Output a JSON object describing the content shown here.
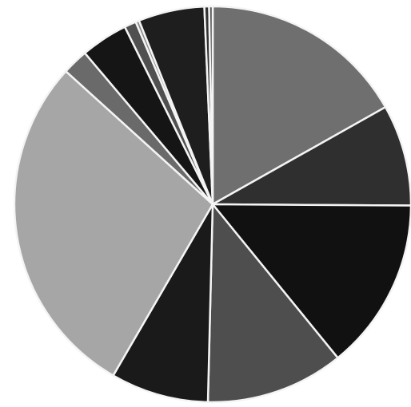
{
  "chart_data": {
    "type": "pie",
    "title": "",
    "start_angle_deg": 0,
    "direction": "clockwise",
    "legend": "none",
    "slices": [
      {
        "value": 17.5,
        "color": "#6f6f6f"
      },
      {
        "value": 8.6,
        "color": "#2f2f2f"
      },
      {
        "value": 14.6,
        "color": "#111111"
      },
      {
        "value": 11.7,
        "color": "#4e4e4e"
      },
      {
        "value": 8.3,
        "color": "#1a1a1a"
      },
      {
        "value": 29.5,
        "color": "#a6a6a6"
      },
      {
        "value": 2.2,
        "color": "#6a6a6a"
      },
      {
        "value": 4.0,
        "color": "#151515"
      },
      {
        "value": 1.0,
        "color": "#505050"
      },
      {
        "value": 0.3,
        "color": "#8a8a8a"
      },
      {
        "value": 5.6,
        "color": "#1e1e1e"
      },
      {
        "value": 0.4,
        "color": "#333333"
      },
      {
        "value": 0.3,
        "color": "#555555"
      }
    ]
  }
}
